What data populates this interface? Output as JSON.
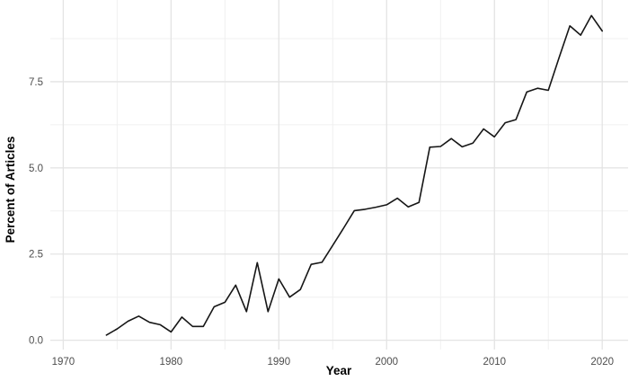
{
  "chart_data": {
    "type": "line",
    "title": "",
    "xlabel": "Year",
    "ylabel": "Percent of Articles",
    "x": [
      1974,
      1975,
      1976,
      1977,
      1978,
      1979,
      1980,
      1981,
      1982,
      1983,
      1984,
      1985,
      1986,
      1987,
      1988,
      1989,
      1990,
      1991,
      1992,
      1993,
      1994,
      1995,
      1996,
      1997,
      1998,
      1999,
      2000,
      2001,
      2002,
      2003,
      2004,
      2005,
      2006,
      2007,
      2008,
      2009,
      2010,
      2011,
      2012,
      2013,
      2014,
      2015,
      2016,
      2017,
      2018,
      2019,
      2020
    ],
    "y": [
      0.15,
      0.33,
      0.55,
      0.7,
      0.52,
      0.45,
      0.24,
      0.67,
      0.4,
      0.4,
      0.97,
      1.1,
      1.6,
      0.83,
      2.25,
      0.83,
      1.78,
      1.25,
      1.47,
      2.2,
      2.26,
      2.75,
      3.25,
      3.76,
      3.8,
      3.86,
      3.93,
      4.12,
      3.87,
      4.0,
      5.6,
      5.62,
      5.85,
      5.61,
      5.72,
      6.13,
      5.9,
      6.31,
      6.4,
      7.2,
      7.31,
      7.25,
      8.2,
      9.12,
      8.85,
      9.42,
      8.97
    ],
    "x_major_ticks": [
      1970,
      1980,
      1990,
      2000,
      2010,
      2020
    ],
    "x_major_tick_labels": [
      "1970",
      "1980",
      "1990",
      "2000",
      "2010",
      "2020"
    ],
    "x_minor_ticks": [
      1975,
      1985,
      1995,
      2005,
      2015
    ],
    "y_major_ticks": [
      0,
      2.5,
      5,
      7.5
    ],
    "y_major_tick_labels": [
      "0.0",
      "2.5",
      "5.0",
      "7.5"
    ],
    "y_minor_ticks": [
      1.25,
      3.75,
      6.25,
      8.75
    ],
    "xlim": [
      1968.8,
      2022.4
    ],
    "ylim": [
      -0.27,
      9.87
    ],
    "grid": true,
    "legend": "none",
    "colors": {
      "background": "#ffffff",
      "line": "#161616",
      "grid_major": "#e4e4e4",
      "grid_minor": "#f0f0f0",
      "tick_label": "#4d4d4d",
      "axis_title": "#000000"
    }
  }
}
